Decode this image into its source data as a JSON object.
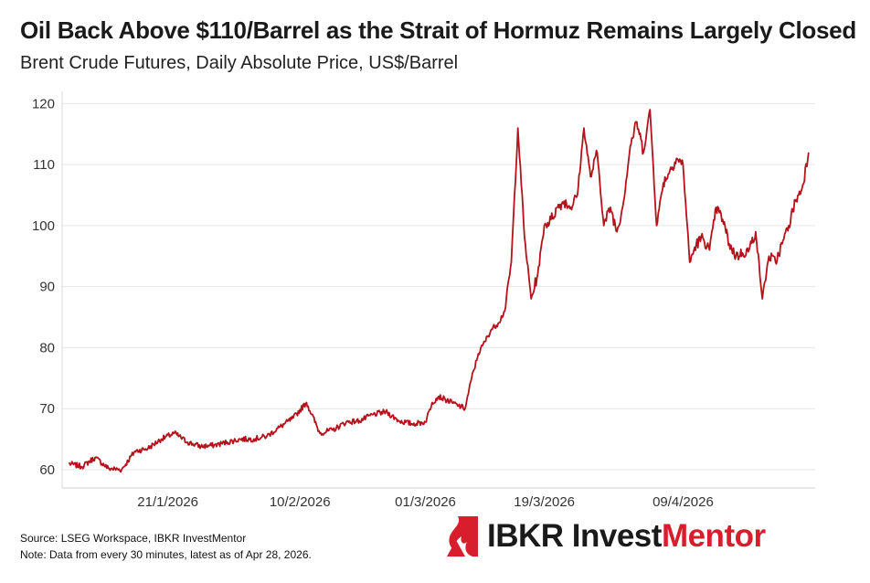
{
  "chart_data": {
    "type": "line",
    "title": "Oil Back Above $110/Barrel as the Strait of Hormuz Remains Largely Closed",
    "subtitle": "Brent Crude Futures, Daily Absolute Price, US$/Barrel",
    "xlabel": "",
    "ylabel": "",
    "y_ticks": [
      60,
      70,
      80,
      90,
      100,
      110,
      120
    ],
    "x_ticks": [
      "21/1/2026",
      "10/2/2026",
      "01/3/2026",
      "19/3/2026",
      "09/4/2026"
    ],
    "ylim": [
      57,
      122
    ],
    "grid": "horizontal",
    "line_color": "#b5121b",
    "series": [
      {
        "x": [
          "2026-01-06",
          "2026-01-08",
          "2026-01-10",
          "2026-01-12",
          "2026-01-14",
          "2026-01-16",
          "2026-01-18",
          "2026-01-20",
          "2026-01-22",
          "2026-01-24",
          "2026-01-26",
          "2026-01-28",
          "2026-01-30",
          "2026-02-01",
          "2026-02-03",
          "2026-02-05",
          "2026-02-07",
          "2026-02-09",
          "2026-02-11",
          "2026-02-13",
          "2026-02-15",
          "2026-02-17",
          "2026-02-19",
          "2026-02-21",
          "2026-02-23",
          "2026-02-25",
          "2026-02-27",
          "2026-03-01",
          "2026-03-02",
          "2026-03-03",
          "2026-03-04",
          "2026-03-05",
          "2026-03-06",
          "2026-03-07",
          "2026-03-08",
          "2026-03-09",
          "2026-03-10",
          "2026-03-11",
          "2026-03-12",
          "2026-03-13",
          "2026-03-14",
          "2026-03-15",
          "2026-03-16",
          "2026-03-17",
          "2026-03-18",
          "2026-03-19",
          "2026-03-20",
          "2026-03-21",
          "2026-03-22",
          "2026-03-23",
          "2026-03-24",
          "2026-03-25",
          "2026-03-26",
          "2026-03-27",
          "2026-03-28",
          "2026-03-29",
          "2026-03-30",
          "2026-03-31",
          "2026-04-01",
          "2026-04-02",
          "2026-04-03",
          "2026-04-04",
          "2026-04-05",
          "2026-04-06",
          "2026-04-07",
          "2026-04-08",
          "2026-04-09",
          "2026-04-10",
          "2026-04-11",
          "2026-04-12",
          "2026-04-13",
          "2026-04-14",
          "2026-04-15",
          "2026-04-16",
          "2026-04-17",
          "2026-04-18",
          "2026-04-19",
          "2026-04-20",
          "2026-04-21",
          "2026-04-22",
          "2026-04-23",
          "2026-04-24",
          "2026-04-25",
          "2026-04-26",
          "2026-04-27",
          "2026-04-28"
        ],
        "values": [
          61.0,
          60.5,
          62.0,
          60.2,
          60.0,
          63.0,
          63.5,
          65.0,
          66.0,
          64.5,
          63.8,
          64.0,
          64.5,
          65.0,
          65.0,
          65.5,
          67.0,
          68.5,
          71.0,
          66.0,
          66.5,
          67.8,
          68.0,
          69.0,
          69.5,
          68.0,
          67.5,
          67.8,
          71.0,
          72.0,
          71.5,
          71.0,
          70.5,
          70.0,
          75.0,
          79.0,
          81.0,
          83.0,
          84.0,
          86.0,
          94.0,
          116.0,
          98.0,
          88.0,
          92.0,
          100.0,
          101.0,
          103.0,
          104.0,
          103.0,
          105.0,
          116.0,
          108.0,
          112.0,
          100.0,
          103.0,
          99.0,
          104.0,
          113.0,
          117.0,
          112.0,
          119.0,
          100.0,
          107.0,
          109.0,
          111.0,
          110.0,
          94.0,
          97.0,
          98.0,
          96.0,
          103.0,
          101.0,
          97.0,
          95.0,
          95.5,
          96.0,
          99.0,
          88.0,
          95.0,
          94.0,
          97.0,
          100.0,
          104.0,
          106.0,
          112.0
        ]
      }
    ]
  },
  "footer": {
    "source": "Source: LSEG Workspace, IBKR InvestMentor",
    "note": "Note: Data from every 30 minutes, latest as of Apr 28, 2026."
  },
  "logo": {
    "part1": "IBKR Invest",
    "part2": "Mentor",
    "accent": "#d81e2c"
  }
}
